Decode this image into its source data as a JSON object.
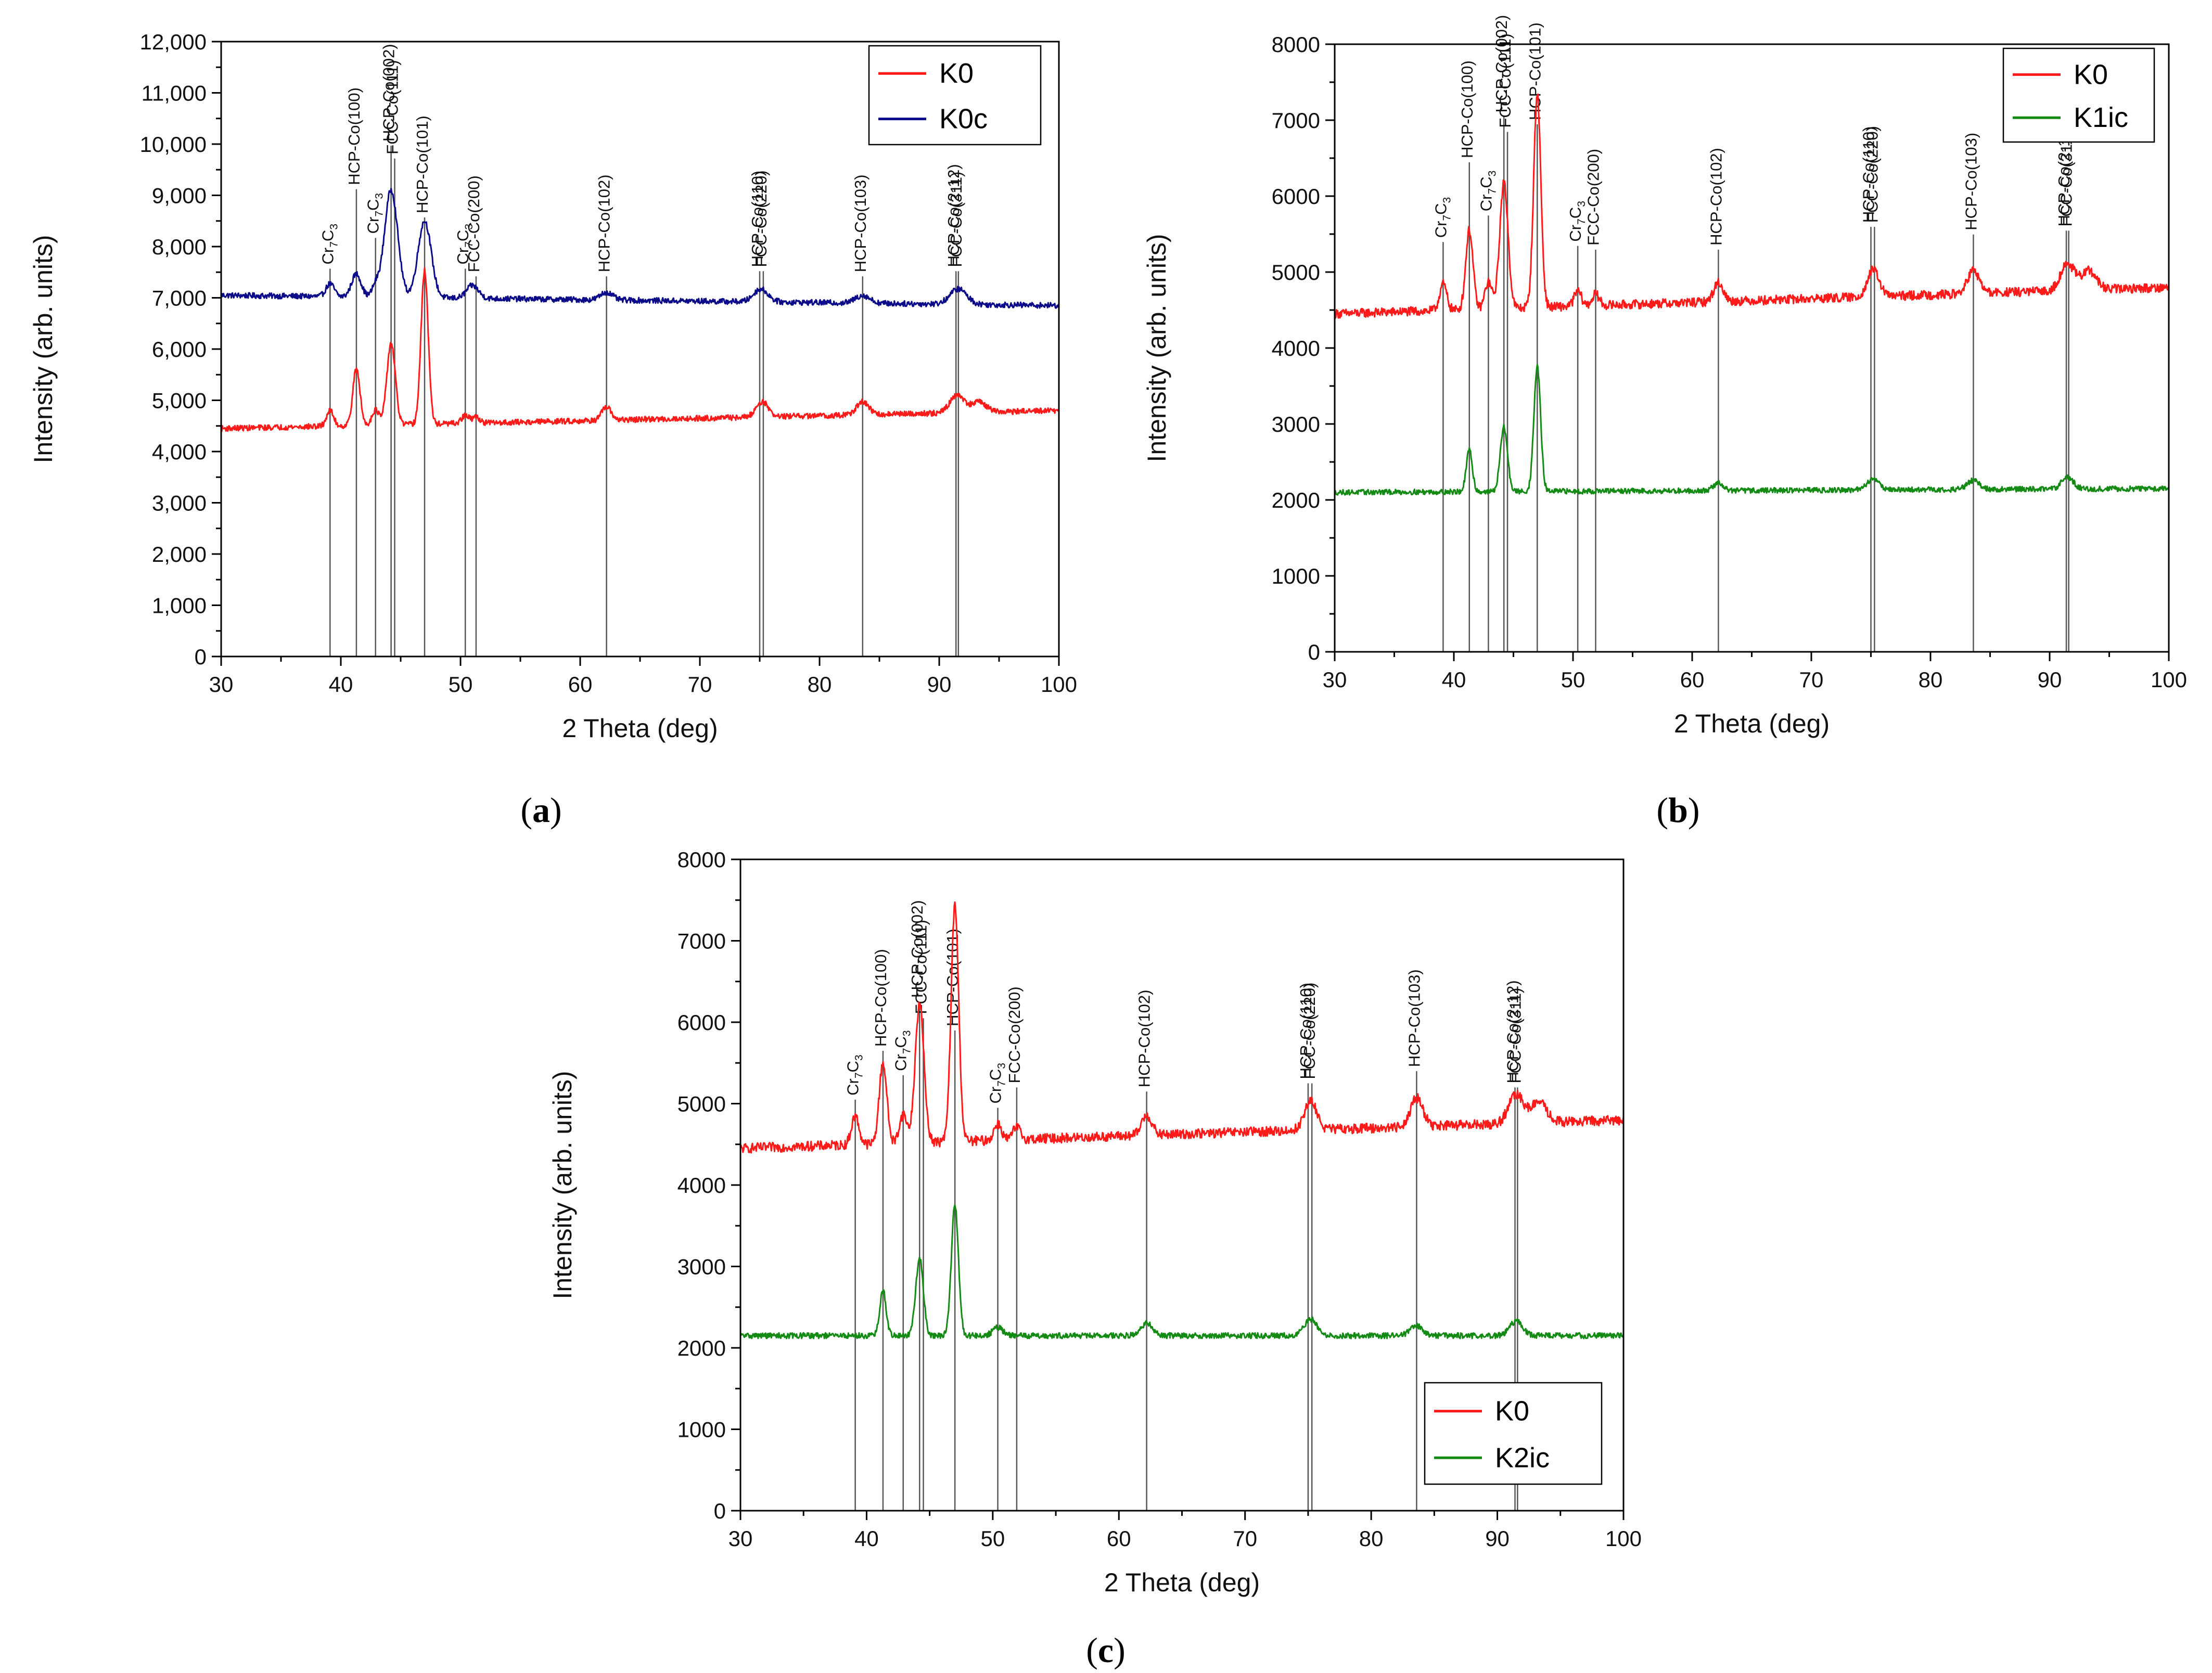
{
  "figure": {
    "panel_labels": [
      {
        "open": "(",
        "letter": "a",
        "close": ")"
      },
      {
        "open": "(",
        "letter": "b",
        "close": ")"
      },
      {
        "open": "(",
        "letter": "c",
        "close": ")"
      }
    ]
  },
  "colors": {
    "K0": "#ff1a1a",
    "K0c": "#0b0b8a",
    "K1ic": "#138a13",
    "K2ic": "#138a13"
  },
  "chart_data": [
    {
      "id": "a",
      "type": "line",
      "xlabel": "2 Theta (deg)",
      "ylabel": "Intensity (arb. units)",
      "xlim": [
        30,
        100
      ],
      "ylim": [
        0,
        12000
      ],
      "xticks": [
        30,
        40,
        50,
        60,
        70,
        80,
        90,
        100
      ],
      "xtick_labels": [
        "30",
        "40",
        "50",
        "60",
        "70",
        "80",
        "90",
        "100"
      ],
      "yticks": [
        0,
        1000,
        2000,
        3000,
        4000,
        5000,
        6000,
        7000,
        8000,
        9000,
        10000,
        11000,
        12000
      ],
      "ytick_labels": [
        "0",
        "1,000",
        "2,000",
        "3,000",
        "4,000",
        "5,000",
        "6,000",
        "7,000",
        "8,000",
        "9,000",
        "10,000",
        "11,000",
        "12,000"
      ],
      "legend": {
        "position": "top-right",
        "entries": [
          {
            "name": "K0",
            "color": "#ff1a1a"
          },
          {
            "name": "K0c",
            "color": "#0b0b8a"
          }
        ]
      },
      "reference_lines": [
        {
          "x": 39.1,
          "label": "Cr7C3",
          "label_top": 7650
        },
        {
          "x": 41.3,
          "label": "HCP-Co(100)",
          "label_top": 9200
        },
        {
          "x": 42.9,
          "label": "Cr7C3",
          "label_top": 8250
        },
        {
          "x": 44.2,
          "label": "HCP-Co(002)",
          "label_top": 10050
        },
        {
          "x": 44.5,
          "label": "FCC-Co(111)",
          "label_top": 9800
        },
        {
          "x": 47.0,
          "label": "HCP-Co(101)",
          "label_top": 8650
        },
        {
          "x": 50.4,
          "label": "Cr7C3",
          "label_top": 7650
        },
        {
          "x": 51.3,
          "label": "FCC-Co(200)",
          "label_top": 7500
        },
        {
          "x": 62.2,
          "label": "HCP-Co(102)",
          "label_top": 7500
        },
        {
          "x": 75.0,
          "label": "HCP-Co(110)",
          "label_top": 7600
        },
        {
          "x": 75.3,
          "label": "FCC-Co(220)",
          "label_top": 7600
        },
        {
          "x": 83.6,
          "label": "HCP-Co(103)",
          "label_top": 7500
        },
        {
          "x": 91.4,
          "label": "HCP-Co(2-12)",
          "label_top": 7600
        },
        {
          "x": 91.6,
          "label": "FCC-Co(311)",
          "label_top": 7600
        }
      ],
      "series": [
        {
          "name": "K0c",
          "color": "#0b0b8a",
          "baseline": [
            7050,
            6850
          ],
          "noise": 55,
          "peaks": [
            [
              39.1,
              250,
              0.35
            ],
            [
              41.3,
              450,
              0.4
            ],
            [
              42.9,
              200,
              0.3
            ],
            [
              44.2,
              2100,
              0.55
            ],
            [
              47.0,
              1500,
              0.55
            ],
            [
              51.0,
              250,
              0.5
            ],
            [
              62.2,
              150,
              0.5
            ],
            [
              75.1,
              250,
              0.6
            ],
            [
              83.6,
              150,
              0.6
            ],
            [
              91.6,
              300,
              0.7
            ]
          ]
        },
        {
          "name": "K0",
          "color": "#ff1a1a",
          "baseline": [
            4450,
            4800
          ],
          "noise": 55,
          "peaks": [
            [
              39.1,
              300,
              0.3
            ],
            [
              41.3,
              1100,
              0.3
            ],
            [
              42.9,
              300,
              0.3
            ],
            [
              44.2,
              1600,
              0.35
            ],
            [
              47.0,
              3000,
              0.3
            ],
            [
              50.4,
              150,
              0.3
            ],
            [
              51.3,
              120,
              0.3
            ],
            [
              62.2,
              250,
              0.4
            ],
            [
              75.2,
              300,
              0.5
            ],
            [
              83.6,
              250,
              0.5
            ],
            [
              91.5,
              350,
              0.6
            ],
            [
              93.3,
              200,
              0.6
            ]
          ]
        }
      ]
    },
    {
      "id": "b",
      "type": "line",
      "xlabel": "2 Theta (deg)",
      "ylabel": "Intensity (arb. units)",
      "xlim": [
        30,
        100
      ],
      "ylim": [
        0,
        8000
      ],
      "xticks": [
        30,
        40,
        50,
        60,
        70,
        80,
        90,
        100
      ],
      "xtick_labels": [
        "30",
        "40",
        "50",
        "60",
        "70",
        "80",
        "90",
        "100"
      ],
      "yticks": [
        0,
        1000,
        2000,
        3000,
        4000,
        5000,
        6000,
        7000,
        8000
      ],
      "ytick_labels": [
        "0",
        "1000",
        "2000",
        "3000",
        "4000",
        "5000",
        "6000",
        "7000",
        "8000"
      ],
      "legend": {
        "position": "top-right",
        "entries": [
          {
            "name": "K0",
            "color": "#ff1a1a"
          },
          {
            "name": "K1ic",
            "color": "#138a13"
          }
        ]
      },
      "reference_lines": [
        {
          "x": 39.1,
          "label": "Cr7C3",
          "label_top": 5450
        },
        {
          "x": 41.3,
          "label": "HCP-Co(100)",
          "label_top": 6500
        },
        {
          "x": 42.9,
          "label": "Cr7C3",
          "label_top": 5800
        },
        {
          "x": 44.2,
          "label": "HCP-Co(002)",
          "label_top": 7100
        },
        {
          "x": 44.5,
          "label": "FCC-Co(111)",
          "label_top": 6900
        },
        {
          "x": 47.0,
          "label": "HCP-Co(101)",
          "label_top": 7000
        },
        {
          "x": 50.4,
          "label": "Cr7C3",
          "label_top": 5400
        },
        {
          "x": 51.9,
          "label": "FCC-Co(200)",
          "label_top": 5350
        },
        {
          "x": 62.2,
          "label": "HCP-Co(102)",
          "label_top": 5350
        },
        {
          "x": 75.0,
          "label": "HCP-Co(110)",
          "label_top": 5650
        },
        {
          "x": 75.3,
          "label": "FCC-Co(220)",
          "label_top": 5650
        },
        {
          "x": 83.6,
          "label": "HCP-Co(103)",
          "label_top": 5550
        },
        {
          "x": 91.4,
          "label": "HCP-Co(2-12)",
          "label_top": 5600
        },
        {
          "x": 91.6,
          "label": "FCC-Co(311)",
          "label_top": 5600
        }
      ],
      "series": [
        {
          "name": "K0",
          "color": "#ff1a1a",
          "baseline": [
            4450,
            4800
          ],
          "noise": 60,
          "peaks": [
            [
              39.1,
              350,
              0.3
            ],
            [
              41.3,
              1050,
              0.3
            ],
            [
              42.9,
              350,
              0.3
            ],
            [
              44.2,
              1650,
              0.35
            ],
            [
              47.0,
              2800,
              0.3
            ],
            [
              50.4,
              200,
              0.3
            ],
            [
              51.9,
              150,
              0.3
            ],
            [
              62.2,
              250,
              0.4
            ],
            [
              75.2,
              350,
              0.5
            ],
            [
              83.6,
              300,
              0.5
            ],
            [
              91.5,
              350,
              0.6
            ],
            [
              93.3,
              250,
              0.6
            ]
          ]
        },
        {
          "name": "K1ic",
          "color": "#138a13",
          "baseline": [
            2100,
            2150
          ],
          "noise": 35,
          "peaks": [
            [
              41.3,
              550,
              0.25
            ],
            [
              44.2,
              850,
              0.3
            ],
            [
              47.0,
              1650,
              0.28
            ],
            [
              62.2,
              100,
              0.4
            ],
            [
              75.2,
              150,
              0.5
            ],
            [
              83.6,
              120,
              0.5
            ],
            [
              91.5,
              150,
              0.5
            ]
          ]
        }
      ]
    },
    {
      "id": "c",
      "type": "line",
      "xlabel": "2 Theta (deg)",
      "ylabel": "Intensity (arb. units)",
      "xlim": [
        30,
        100
      ],
      "ylim": [
        0,
        8000
      ],
      "xticks": [
        30,
        40,
        50,
        60,
        70,
        80,
        90,
        100
      ],
      "xtick_labels": [
        "30",
        "40",
        "50",
        "60",
        "70",
        "80",
        "90",
        "100"
      ],
      "yticks": [
        0,
        1000,
        2000,
        3000,
        4000,
        5000,
        6000,
        7000,
        8000
      ],
      "ytick_labels": [
        "0",
        "1000",
        "2000",
        "3000",
        "4000",
        "5000",
        "6000",
        "7000",
        "8000"
      ],
      "legend": {
        "position": "bottom-right",
        "entries": [
          {
            "name": "K0",
            "color": "#ff1a1a"
          },
          {
            "name": "K2ic",
            "color": "#138a13"
          }
        ]
      },
      "reference_lines": [
        {
          "x": 39.1,
          "label": "Cr7C3",
          "label_top": 5100
        },
        {
          "x": 41.3,
          "label": "HCP-Co(100)",
          "label_top": 5700
        },
        {
          "x": 42.9,
          "label": "Cr7C3",
          "label_top": 5400
        },
        {
          "x": 44.2,
          "label": "HCP-Co(002)",
          "label_top": 6300
        },
        {
          "x": 44.5,
          "label": "FCC-Co(111)",
          "label_top": 6100
        },
        {
          "x": 47.0,
          "label": "HCP-Co(101)",
          "label_top": 5950
        },
        {
          "x": 50.4,
          "label": "Cr7C3",
          "label_top": 5000
        },
        {
          "x": 51.9,
          "label": "FCC-Co(200)",
          "label_top": 5250
        },
        {
          "x": 62.2,
          "label": "HCP-Co(102)",
          "label_top": 5200
        },
        {
          "x": 75.0,
          "label": "HCP-Co(110)",
          "label_top": 5300
        },
        {
          "x": 75.3,
          "label": "FCC-Co(220)",
          "label_top": 5300
        },
        {
          "x": 83.6,
          "label": "HCP-Co(103)",
          "label_top": 5450
        },
        {
          "x": 91.4,
          "label": "HCP-Co(2-12)",
          "label_top": 5250
        },
        {
          "x": 91.6,
          "label": "FCC-Co(311)",
          "label_top": 5250
        }
      ],
      "series": [
        {
          "name": "K0",
          "color": "#ff1a1a",
          "baseline": [
            4450,
            4800
          ],
          "noise": 60,
          "peaks": [
            [
              39.1,
              350,
              0.3
            ],
            [
              41.3,
              1000,
              0.3
            ],
            [
              42.9,
              350,
              0.3
            ],
            [
              44.2,
              1700,
              0.35
            ],
            [
              47.0,
              2900,
              0.3
            ],
            [
              50.4,
              200,
              0.3
            ],
            [
              51.9,
              150,
              0.3
            ],
            [
              62.2,
              250,
              0.4
            ],
            [
              75.2,
              350,
              0.5
            ],
            [
              83.6,
              350,
              0.5
            ],
            [
              91.5,
              350,
              0.6
            ],
            [
              93.3,
              250,
              0.6
            ]
          ]
        },
        {
          "name": "K2ic",
          "color": "#138a13",
          "baseline": [
            2150,
            2150
          ],
          "noise": 35,
          "peaks": [
            [
              41.3,
              550,
              0.25
            ],
            [
              44.2,
              950,
              0.3
            ],
            [
              47.0,
              1600,
              0.28
            ],
            [
              50.4,
              100,
              0.4
            ],
            [
              62.2,
              150,
              0.5
            ],
            [
              75.2,
              200,
              0.5
            ],
            [
              83.6,
              120,
              0.5
            ],
            [
              91.5,
              180,
              0.5
            ]
          ]
        }
      ]
    }
  ]
}
